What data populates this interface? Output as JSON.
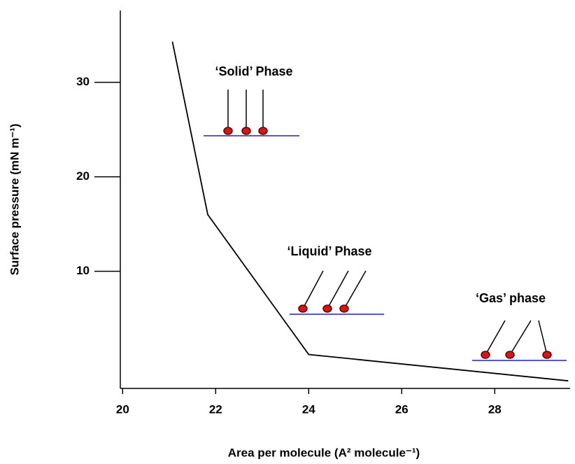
{
  "chart_data": {
    "type": "line",
    "x_label": "Area per molecule (A² molecule⁻¹)",
    "y_label": "Surface pressure (mN m⁻¹)",
    "x": [
      21.07,
      21.83,
      24.0,
      29.58
    ],
    "series": [
      {
        "color": "#000000",
        "values": [
          34.3,
          16.0,
          1.19,
          -1.6
        ]
      }
    ],
    "xlim": [
      19.95,
      29.62
    ],
    "xticks": [
      20,
      22,
      24,
      26,
      28
    ],
    "ylim": [
      -2.4,
      37.6
    ],
    "yticks": [
      10,
      20,
      30
    ],
    "grid": false,
    "annotations": [
      "‘Solid’ Phase",
      "‘Liquid’ Phase",
      "‘Gas’ phase"
    ]
  }
}
